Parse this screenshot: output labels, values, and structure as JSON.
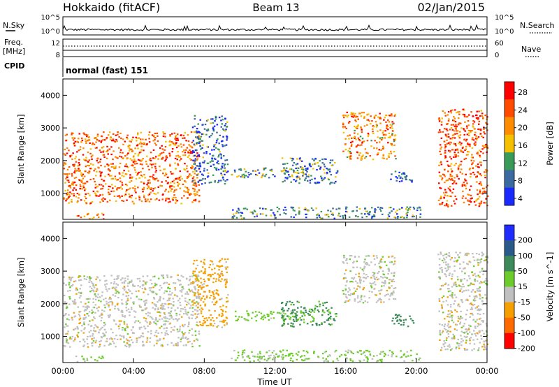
{
  "header": {
    "title": "Hokkaido (fitACF)",
    "beam": "Beam 13",
    "date": "02/Jan/2015"
  },
  "summary_panels": {
    "nsky_label": "N.Sky",
    "nsky_ticks": [
      "10^5",
      "10^0"
    ],
    "nsearch_label": "N.Search",
    "nsearch_ticks": [
      "10^5",
      "10^0"
    ],
    "freq_label_1": "Freq.",
    "freq_label_2": "[MHz]",
    "freq_ticks": [
      "12",
      "8"
    ],
    "nave_label": "Nave",
    "nave_ticks": [
      "60",
      "0"
    ],
    "cpid_label": "CPID",
    "cpid_text": "normal (fast) 151"
  },
  "chart_data": [
    {
      "type": "heatmap",
      "name": "power",
      "ylabel": "Slant Range [km]",
      "ylim": [
        200,
        4500
      ],
      "yticks": [
        "4000",
        "3000",
        "2000",
        "1000"
      ],
      "xlabel": "Time UT",
      "xlim": [
        0,
        24
      ],
      "xticks": [
        "00:00",
        "04:00",
        "08:00",
        "12:00",
        "16:00",
        "20:00",
        "00:00"
      ],
      "colorbar": {
        "label": "Power [dB]",
        "ticks": [
          "28",
          "24",
          "20",
          "16",
          "12",
          "8",
          "4"
        ],
        "colors": [
          "#ff0000",
          "#ff4a00",
          "#ff8c00",
          "#f5c000",
          "#3a9a5a",
          "#3a6aa0",
          "#1a2aff"
        ]
      },
      "regions": [
        {
          "t": [
            0.0,
            7.7
          ],
          "r": [
            700,
            2900
          ],
          "level": 24
        },
        {
          "t": [
            0.7,
            2.3
          ],
          "r": [
            230,
            420
          ],
          "level": 24
        },
        {
          "t": [
            7.3,
            9.3
          ],
          "r": [
            1300,
            3400
          ],
          "level": 10
        },
        {
          "t": [
            9.5,
            13.7
          ],
          "r": [
            1500,
            1800
          ],
          "level": 14
        },
        {
          "t": [
            12.3,
            15.5
          ],
          "r": [
            1300,
            2100
          ],
          "level": 12
        },
        {
          "t": [
            9.5,
            20.2
          ],
          "r": [
            250,
            600
          ],
          "level": 12
        },
        {
          "t": [
            15.8,
            18.8
          ],
          "r": [
            2050,
            3500
          ],
          "level": 22
        },
        {
          "t": [
            21.2,
            24.0
          ],
          "r": [
            600,
            3600
          ],
          "level": 26
        },
        {
          "t": [
            18.5,
            19.8
          ],
          "r": [
            1300,
            1700
          ],
          "level": 8
        }
      ]
    },
    {
      "type": "heatmap",
      "name": "velocity",
      "ylabel": "Slant Range [km]",
      "ylim": [
        200,
        4500
      ],
      "yticks": [
        "4000",
        "3000",
        "2000",
        "1000"
      ],
      "xlabel": "Time UT",
      "xlim": [
        0,
        24
      ],
      "xticks": [
        "00:00",
        "04:00",
        "08:00",
        "12:00",
        "16:00",
        "20:00",
        "00:00"
      ],
      "colorbar": {
        "label": "Velocity [m s^-1]",
        "ticks": [
          "200",
          "100",
          "50",
          "15",
          "-15",
          "-50",
          "-100",
          "-200"
        ],
        "colors": [
          "#1f2bff",
          "#2a5a8a",
          "#3c8a5a",
          "#6ccc2c",
          "#c0c0c0",
          "#f5a000",
          "#ff6a00",
          "#ff0000"
        ]
      },
      "regions": [
        {
          "t": [
            0.0,
            7.7
          ],
          "r": [
            700,
            2900
          ],
          "level": 0
        },
        {
          "t": [
            0.7,
            2.3
          ],
          "r": [
            230,
            420
          ],
          "level": 30
        },
        {
          "t": [
            7.3,
            9.3
          ],
          "r": [
            1300,
            3400
          ],
          "level": -30
        },
        {
          "t": [
            9.5,
            13.7
          ],
          "r": [
            1500,
            1800
          ],
          "level": 30
        },
        {
          "t": [
            12.3,
            15.5
          ],
          "r": [
            1300,
            2100
          ],
          "level": 60
        },
        {
          "t": [
            9.5,
            20.2
          ],
          "r": [
            250,
            600
          ],
          "level": 20
        },
        {
          "t": [
            15.8,
            18.8
          ],
          "r": [
            2050,
            3500
          ],
          "level": 0
        },
        {
          "t": [
            21.2,
            24.0
          ],
          "r": [
            600,
            3600
          ],
          "level": 0
        },
        {
          "t": [
            18.5,
            19.8
          ],
          "r": [
            1300,
            1700
          ],
          "level": 80
        }
      ]
    }
  ]
}
